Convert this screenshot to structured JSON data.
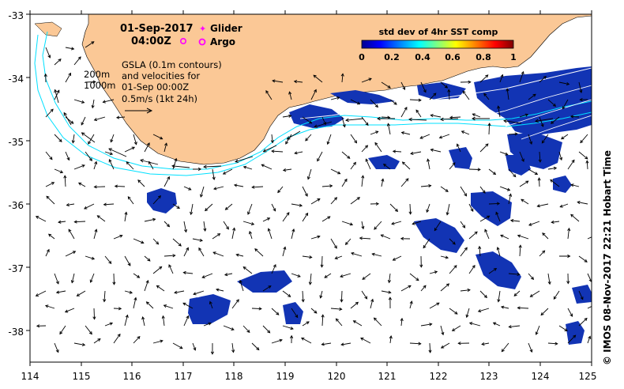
{
  "header": {
    "date": "01-Sep-2017",
    "time": "04:00Z"
  },
  "legend": {
    "glider_label": "Glider",
    "argo_label": "Argo",
    "glider_color": "#ff00ff",
    "argo_color": "#ff00ff"
  },
  "notes": {
    "contour_200": "200m",
    "contour_1000": "1000m",
    "gsla_line1": "GSLA (0.1m contours)",
    "gsla_line2": "and velocities for",
    "gsla_line3": "01-Sep 00:00Z",
    "scale_label": "0.5m/s (1kt 24h)"
  },
  "colorbar": {
    "title": "std dev of 4hr SST comp",
    "ticks": [
      "0",
      "0.2",
      "0.4",
      "0.6",
      "0.8",
      "1"
    ],
    "colors": [
      "#00008f",
      "#0000ff",
      "#0080ff",
      "#00ffff",
      "#80ff80",
      "#ffff00",
      "#ff8000",
      "#ff0000",
      "#800000"
    ]
  },
  "axes": {
    "x_ticks": [
      "114",
      "115",
      "116",
      "117",
      "118",
      "119",
      "120",
      "121",
      "122",
      "123",
      "124",
      "125"
    ],
    "y_ticks": [
      "-33",
      "-34",
      "-35",
      "-36",
      "-37",
      "-38"
    ],
    "x_range": [
      114,
      125
    ],
    "y_range": [
      -38.5,
      -33
    ]
  },
  "colors": {
    "land": "#fbc896",
    "shelf_contour": "#00e0ff",
    "gsla_contour": "#ffffff",
    "sst_patch": "#1030b0",
    "arrow": "#000000"
  },
  "credit": "© IMOS 08-Nov-2017 22:21 Hobart Time"
}
